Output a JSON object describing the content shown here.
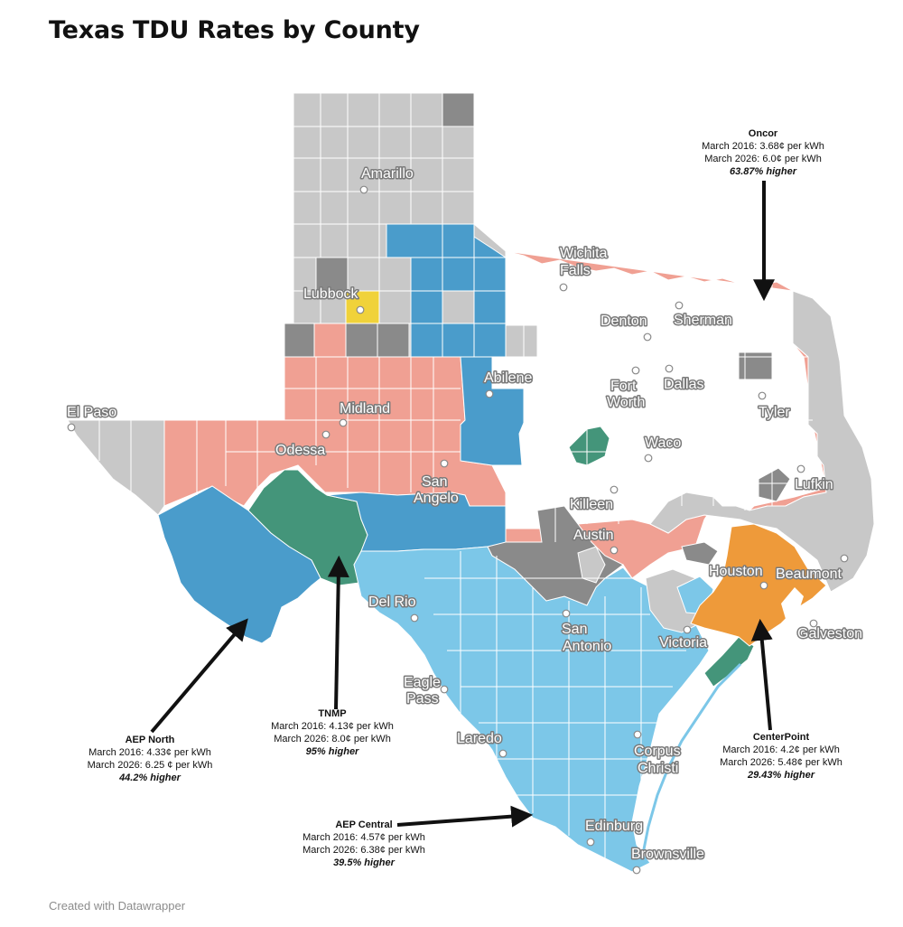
{
  "title": "Texas TDU Rates by County",
  "footer": "Created with Datawrapper",
  "colors": {
    "oncor": "#f0a093",
    "aep_north": "#4a9ccb",
    "aep_central": "#7cc7e8",
    "tnmp": "#44957a",
    "centerpoint": "#ee9a3a",
    "lubbock_power": "#f0d23a",
    "other_gray": "#c8c8c8",
    "dark_gray": "#8a8a8a",
    "border": "#ffffff"
  },
  "cities": [
    {
      "name": "Amarillo"
    },
    {
      "name": "Lubbock"
    },
    {
      "name": "Wichita Falls"
    },
    {
      "name": "Denton"
    },
    {
      "name": "Sherman"
    },
    {
      "name": "Fort Worth"
    },
    {
      "name": "Dallas"
    },
    {
      "name": "Tyler"
    },
    {
      "name": "Abilene"
    },
    {
      "name": "Midland"
    },
    {
      "name": "Odessa"
    },
    {
      "name": "El Paso"
    },
    {
      "name": "San Angelo"
    },
    {
      "name": "Waco"
    },
    {
      "name": "Killeen"
    },
    {
      "name": "Lufkin"
    },
    {
      "name": "Austin"
    },
    {
      "name": "Houston"
    },
    {
      "name": "Beaumont"
    },
    {
      "name": "Galveston"
    },
    {
      "name": "San Antonio"
    },
    {
      "name": "Victoria"
    },
    {
      "name": "Del Rio"
    },
    {
      "name": "Eagle Pass"
    },
    {
      "name": "Laredo"
    },
    {
      "name": "Corpus Christi"
    },
    {
      "name": "Edinburg"
    },
    {
      "name": "Brownsville"
    }
  ],
  "annotations": {
    "oncor": {
      "name": "Oncor",
      "line1": "March 2016:  3.68¢ per kWh",
      "line2": "March 2026:  6.0¢ per kWh",
      "pct": "63.87% higher"
    },
    "aep_north": {
      "name": "AEP North",
      "line1": "March 2016:  4.33¢ per kWh",
      "line2": "March 2026:  6.25 ¢ per kWh",
      "pct": "44.2% higher"
    },
    "tnmp": {
      "name": "TNMP",
      "line1": "March 2016:  4.13¢ per kWh",
      "line2": "March 2026:  8.0¢ per kWh",
      "pct": "95% higher"
    },
    "aep_central": {
      "name": "AEP Central",
      "line1": "March 2016:  4.57¢ per kWh",
      "line2": "March 2026:  6.38¢ per kWh",
      "pct": "39.5% higher"
    },
    "centerpoint": {
      "name": "CenterPoint",
      "line1": "March 2016:  4.2¢ per kWh",
      "line2": "March 2026:  5.48¢ per kWh",
      "pct": "29.43% higher"
    }
  }
}
